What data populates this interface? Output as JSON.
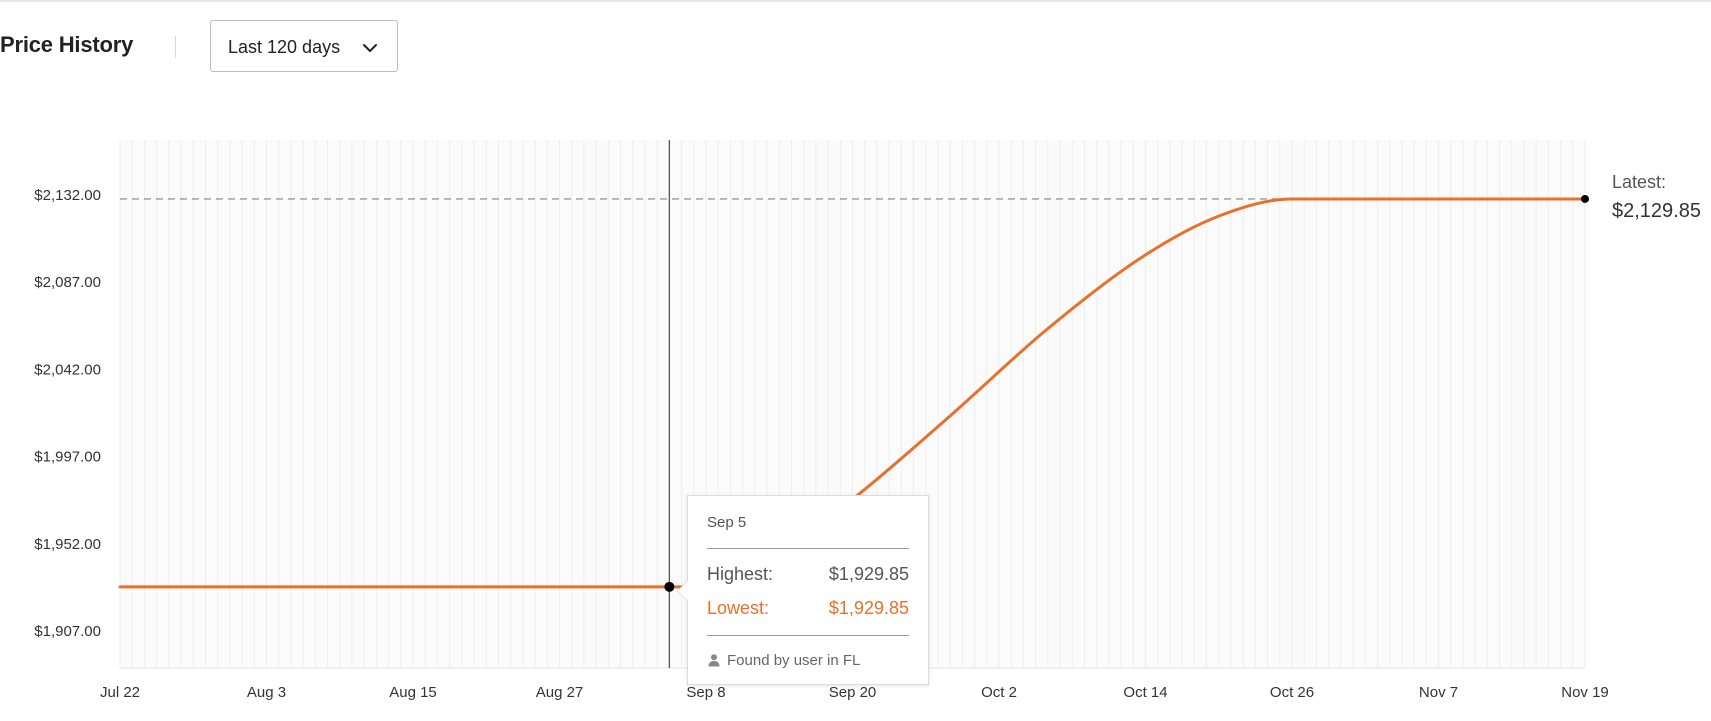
{
  "header": {
    "title": "Price History",
    "range_select": {
      "selected": "Last 120 days",
      "icon": "chevron-down-icon"
    }
  },
  "latest": {
    "label": "Latest:",
    "value": "$2,129.85"
  },
  "tooltip": {
    "date": "Sep 5",
    "highest_label": "Highest:",
    "highest_value": "$1,929.85",
    "lowest_label": "Lowest:",
    "lowest_value": "$1,929.85",
    "found_text": "Found by user in FL",
    "found_icon": "user-icon"
  },
  "colors": {
    "line": "#e8702a",
    "grid": "#eeeeee",
    "reference": "#999999",
    "marker": "#000000"
  },
  "chart_data": {
    "type": "line",
    "x_ticks": [
      "Jul 22",
      "Aug 3",
      "Aug 15",
      "Aug 27",
      "Sep 8",
      "Sep 20",
      "Oct 2",
      "Oct 14",
      "Oct 26",
      "Nov 7",
      "Nov 19"
    ],
    "y_ticks": [
      "$2,132.00",
      "$2,087.00",
      "$2,042.00",
      "$1,997.00",
      "$1,952.00",
      "$1,907.00"
    ],
    "ylim": [
      1888,
      2152
    ],
    "xlim": [
      "Jul 22",
      "Nov 19"
    ],
    "grid": "vertical daily lines",
    "reference_line": {
      "value": 2129.85,
      "style": "dashed"
    },
    "series": [
      {
        "values": [
          {
            "date": "Jul 22",
            "price": 1929.85
          },
          {
            "date": "Sep 5",
            "price": 1929.85
          },
          {
            "date": "Sep 10",
            "price": 1929.85
          },
          {
            "date": "Sep 20",
            "price": 1975
          },
          {
            "date": "Sep 28",
            "price": 2018
          },
          {
            "date": "Oct 6",
            "price": 2063
          },
          {
            "date": "Oct 14",
            "price": 2101
          },
          {
            "date": "Oct 20",
            "price": 2121
          },
          {
            "date": "Oct 26",
            "price": 2129.85
          },
          {
            "date": "Nov 19",
            "price": 2129.85
          }
        ]
      }
    ],
    "hover": {
      "date": "Sep 5",
      "price": 1929.85
    },
    "latest_point": {
      "date": "Nov 19",
      "price": 2129.85
    }
  }
}
